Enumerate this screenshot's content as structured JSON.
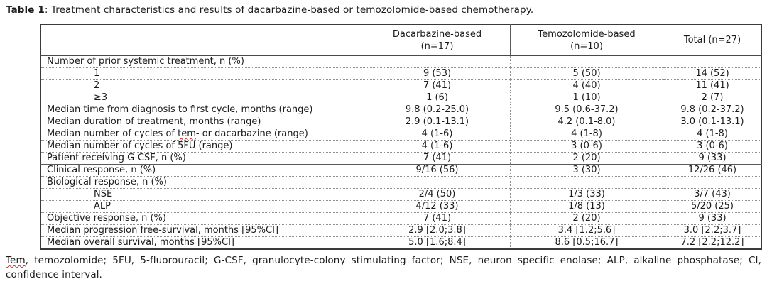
{
  "title": {
    "label": "Table 1",
    "text": ": Treatment characteristics and results of dacarbazine-based or temozolomide-based chemotherapy."
  },
  "table": {
    "columns": {
      "dacarbazine": {
        "label": "Dacarbazine-based",
        "sub": "(n=17)"
      },
      "temozolomide": {
        "label": "Temozolomide-based",
        "sub": "(n=10)"
      },
      "total": {
        "label": "Total (n=27)"
      }
    },
    "rows": [
      {
        "label": "Number of prior systemic treatment, n (%)",
        "dac": "",
        "tem": "",
        "total": ""
      },
      {
        "label": "1",
        "dac": "9 (53)",
        "tem": "5 (50)",
        "total": "14 (52)"
      },
      {
        "label": "2",
        "dac": "7 (41)",
        "tem": "4 (40)",
        "total": "11 (41)"
      },
      {
        "label": "≥3",
        "dac": "1 (6)",
        "tem": "1 (10)",
        "total": "2 (7)"
      },
      {
        "label": "Median time from diagnosis to first cycle, months (range)",
        "dac": "9.8 (0.2-25.0)",
        "tem": "9.5 (0.6-37.2)",
        "total": "9.8 (0.2-37.2)"
      },
      {
        "label": "Median duration of treatment, months (range)",
        "dac": "2.9 (0.1-13.1)",
        "tem": "4.2 (0.1-8.0)",
        "total": "3.0 (0.1-13.1)"
      },
      {
        "label_pre": "Median number of cycles of ",
        "label_squiggle": "tem",
        "label_post": "- or dacarbazine (range)",
        "dac": "4 (1-6)",
        "tem": "4 (1-8)",
        "total": "4 (1-8)"
      },
      {
        "label": "Median number of cycles of 5FU (range)",
        "dac": "4 (1-6)",
        "tem": "3 (0-6)",
        "total": "3 (0-6)"
      },
      {
        "label": "Patient receiving G-CSF, n (%)",
        "dac": "7 (41)",
        "tem": "2 (20)",
        "total": "9 (33)"
      },
      {
        "label": "Clinical response, n (%)",
        "dac": "9/16 (56)",
        "tem": "3 (30)",
        "total": "12/26 (46)"
      },
      {
        "label": "Biological response, n (%)",
        "dac": "",
        "tem": "",
        "total": ""
      },
      {
        "label": "NSE",
        "dac": "2/4 (50)",
        "tem": "1/3 (33)",
        "total": "3/7 (43)"
      },
      {
        "label": "ALP",
        "dac": "4/12 (33)",
        "tem": "1/8 (13)",
        "total": "5/20 (25)"
      },
      {
        "label": "Objective response, n (%)",
        "dac": "7 (41)",
        "tem": "2 (20)",
        "total": "9 (33)"
      },
      {
        "label": "Median progression free-survival, months [95%CI]",
        "dac": "2.9 [2.0;3.8]",
        "tem": "3.4 [1.2;5.6]",
        "total": "3.0 [2.2;3.7]"
      },
      {
        "label": "Median overall survival, months [95%CI]",
        "dac": "5.0 [1.6;8.4]",
        "tem": "8.6 [0.5;16.7]",
        "total": "7.2 [2.2;12.2]"
      }
    ]
  },
  "footnote": {
    "squiggle": "Tem",
    "text": ", temozolomide; 5FU, 5-fluorouracil; G-CSF, granulocyte-colony stimulating factor; NSE, neuron specific enolase; ALP, alkaline phosphatase; CI, confidence interval."
  }
}
